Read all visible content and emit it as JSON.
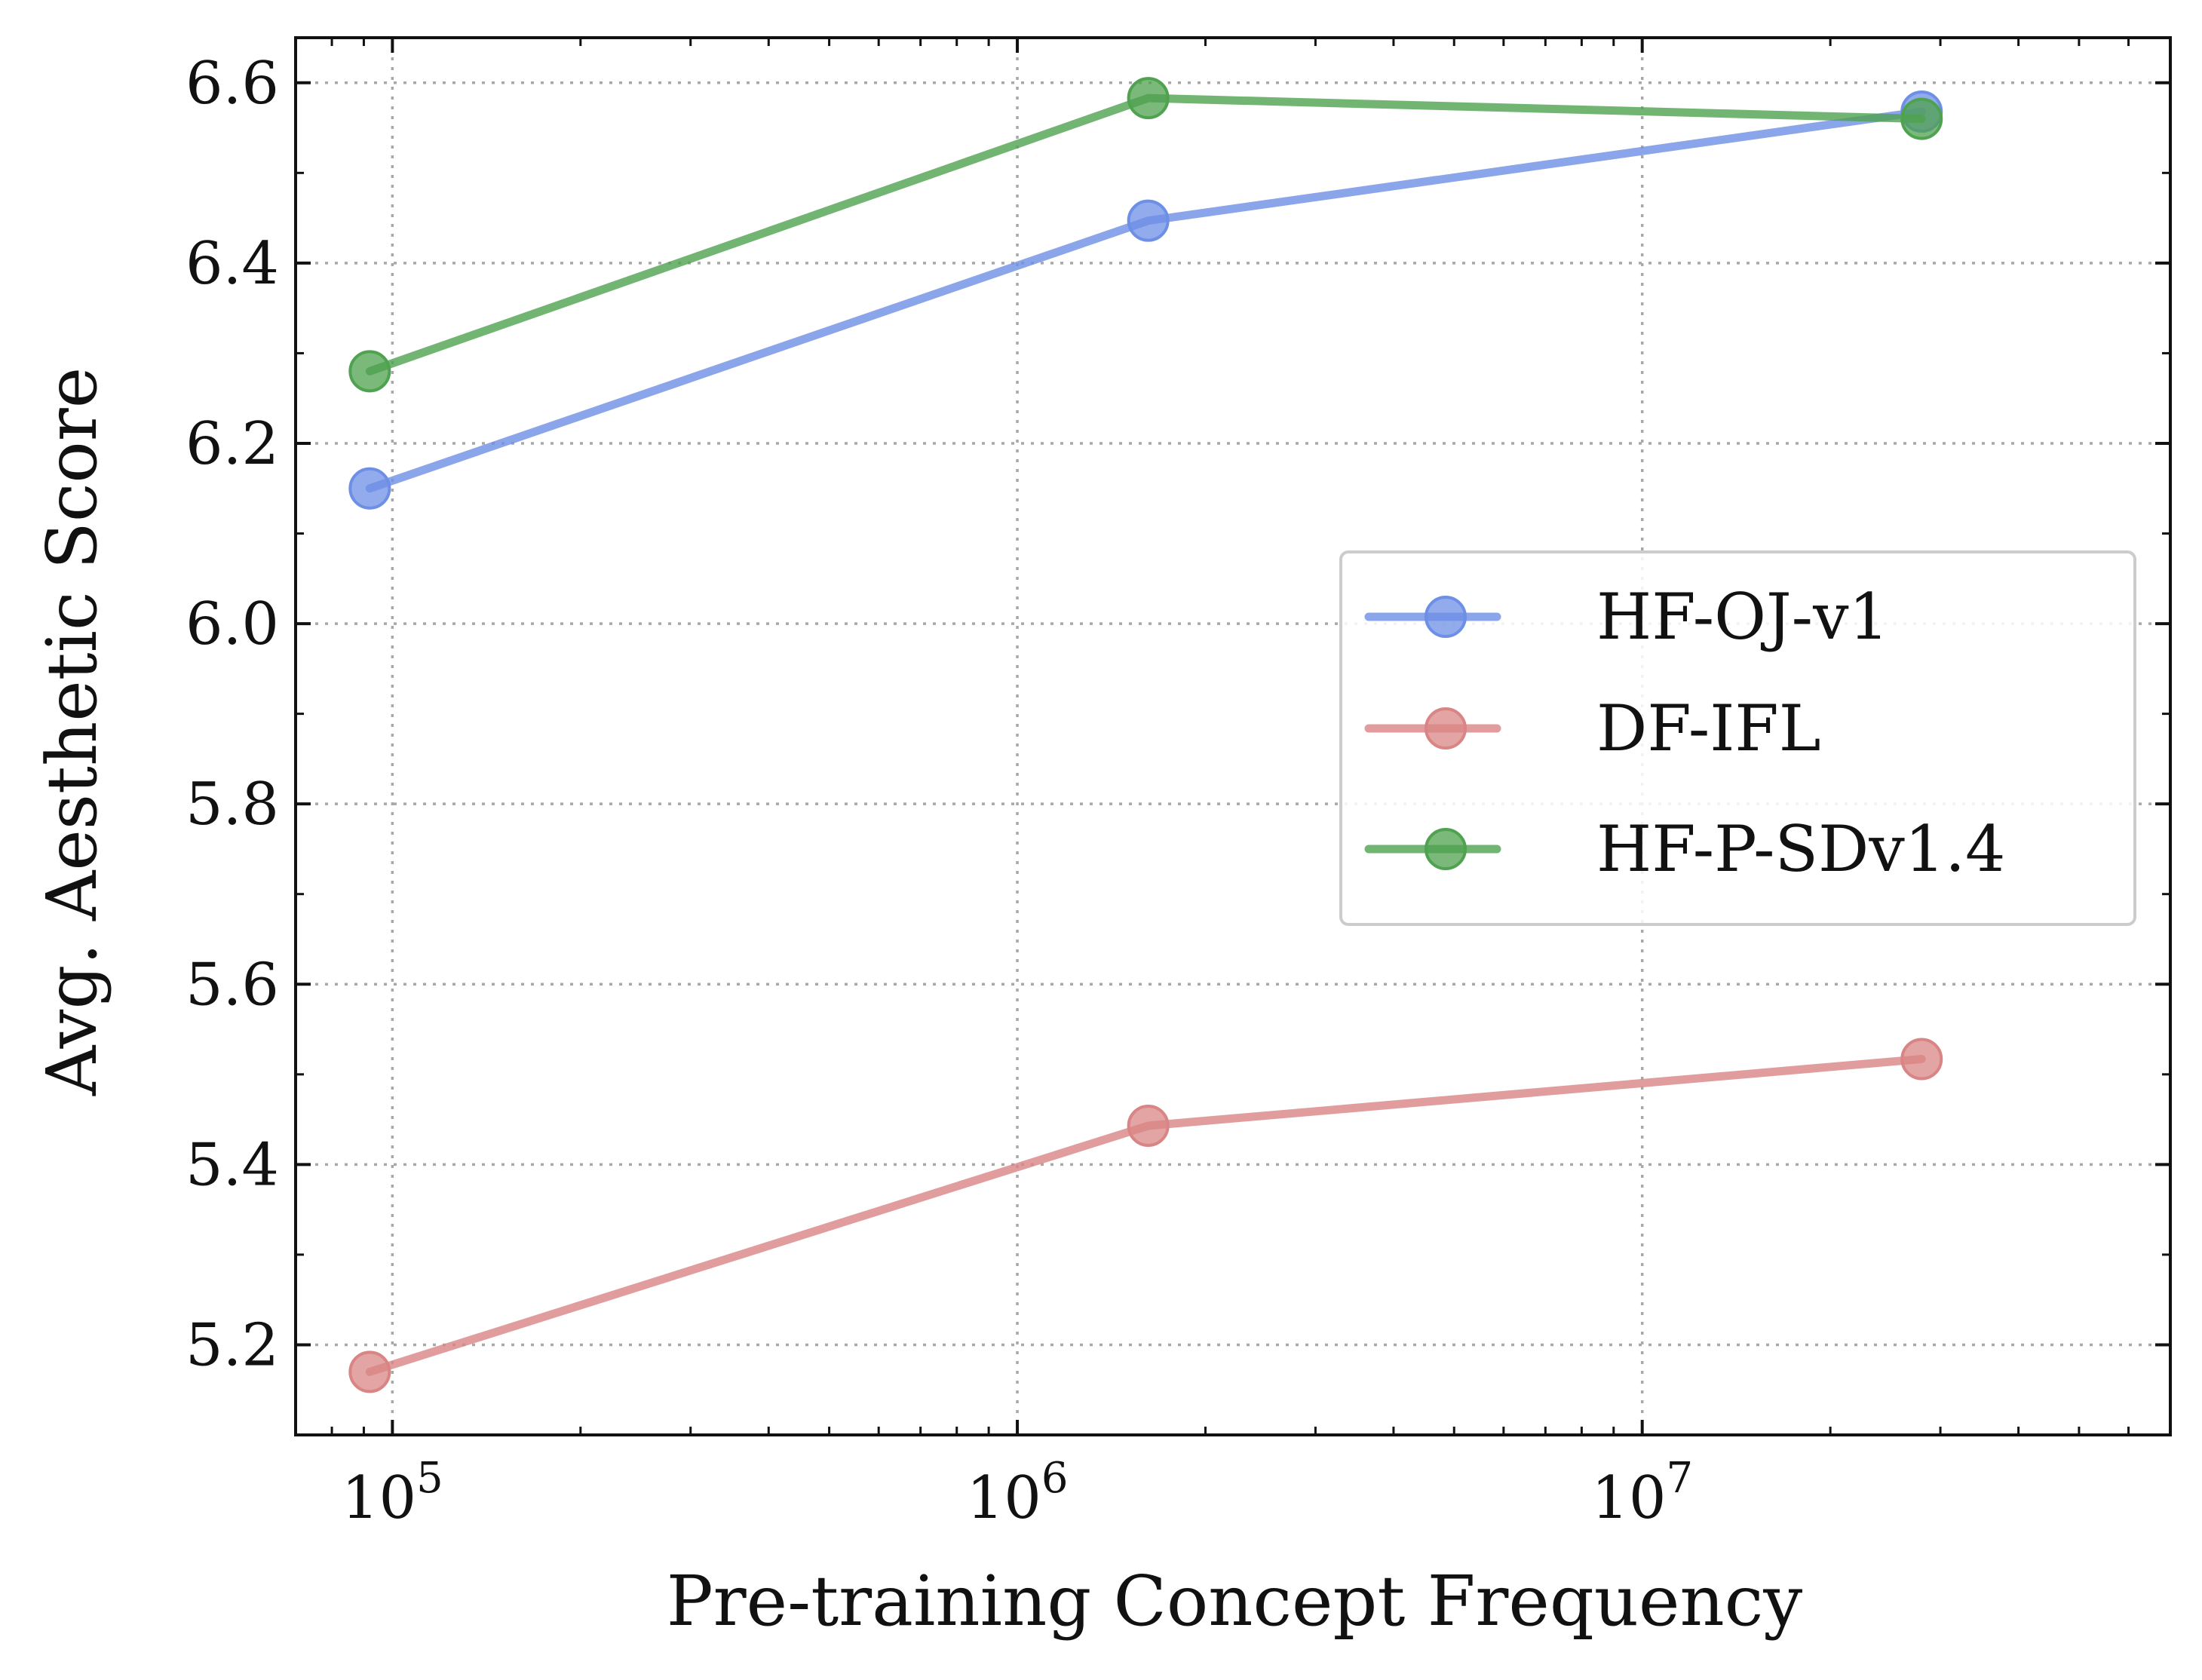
{
  "chart_data": {
    "type": "line",
    "xlabel": "Pre-training Concept Frequency",
    "ylabel": "Avg. Aesthetic Score",
    "x_scale": "log",
    "xlim": [
      70000,
      70000000
    ],
    "ylim": [
      5.1,
      6.65
    ],
    "grid": true,
    "legend_position": "center-right",
    "y_ticks": [
      5.2,
      5.4,
      5.6,
      5.8,
      6.0,
      6.2,
      6.4,
      6.6
    ],
    "y_tick_labels": [
      "5.2",
      "5.4",
      "5.6",
      "5.8",
      "6.0",
      "6.2",
      "6.4",
      "6.6"
    ],
    "x_ticks": [
      {
        "value": 100000,
        "base": "10",
        "exp": "5"
      },
      {
        "value": 1000000,
        "base": "10",
        "exp": "6"
      },
      {
        "value": 10000000,
        "base": "10",
        "exp": "7"
      }
    ],
    "x": [
      92000,
      1620000,
      28000000
    ],
    "series": [
      {
        "name": "HF-OJ-v1",
        "color": "#6e8fe6",
        "values": [
          6.15,
          6.447,
          6.568
        ]
      },
      {
        "name": "DF-IFL",
        "color": "#d98585",
        "values": [
          5.17,
          5.443,
          5.517
        ]
      },
      {
        "name": "HF-P-SDv1.4",
        "color": "#4fa24f",
        "values": [
          6.28,
          6.583,
          6.56
        ]
      }
    ]
  }
}
